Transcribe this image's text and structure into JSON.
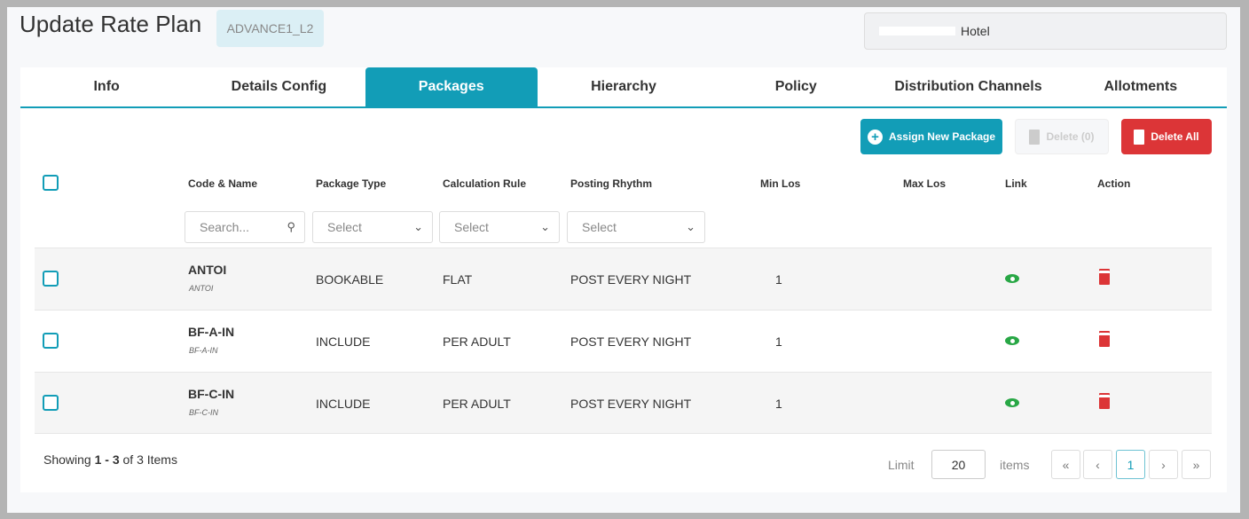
{
  "header": {
    "title": "Update Rate Plan",
    "code": "ADVANCE1_L2",
    "hotel": "Hotel"
  },
  "tabs": [
    "Info",
    "Details Config",
    "Packages",
    "Hierarchy",
    "Policy",
    "Distribution Channels",
    "Allotments"
  ],
  "active_tab": "Packages",
  "toolbar": {
    "assign": "Assign New Package",
    "delete": "Delete (0)",
    "delete_all": "Delete All"
  },
  "columns": [
    "Code & Name",
    "Package Type",
    "Calculation Rule",
    "Posting Rhythm",
    "Min Los",
    "Max Los",
    "Link",
    "Action"
  ],
  "filters": {
    "search_placeholder": "Search...",
    "select": "Select"
  },
  "rows": [
    {
      "code": "ANTOI",
      "name": "ANTOI",
      "type": "BOOKABLE",
      "calc": "FLAT",
      "posting": "POST EVERY NIGHT",
      "min_los": "1",
      "max_los": ""
    },
    {
      "code": "BF-A-IN",
      "name": "BF-A-IN",
      "type": "INCLUDE",
      "calc": "PER ADULT",
      "posting": "POST EVERY NIGHT",
      "min_los": "1",
      "max_los": ""
    },
    {
      "code": "BF-C-IN",
      "name": "BF-C-IN",
      "type": "INCLUDE",
      "calc": "PER ADULT",
      "posting": "POST EVERY NIGHT",
      "min_los": "1",
      "max_los": ""
    }
  ],
  "footer": {
    "showing_prefix": "Showing ",
    "range": "1 - 3",
    "showing_suffix": " of 3 Items",
    "limit_label": "Limit",
    "limit": "20",
    "items_label": "items",
    "current_page": "1",
    "first": "«",
    "prev": "‹",
    "next": "›",
    "last": "»"
  },
  "colors": {
    "accent": "#129db7",
    "danger": "#dc3537",
    "link": "#28a745"
  }
}
